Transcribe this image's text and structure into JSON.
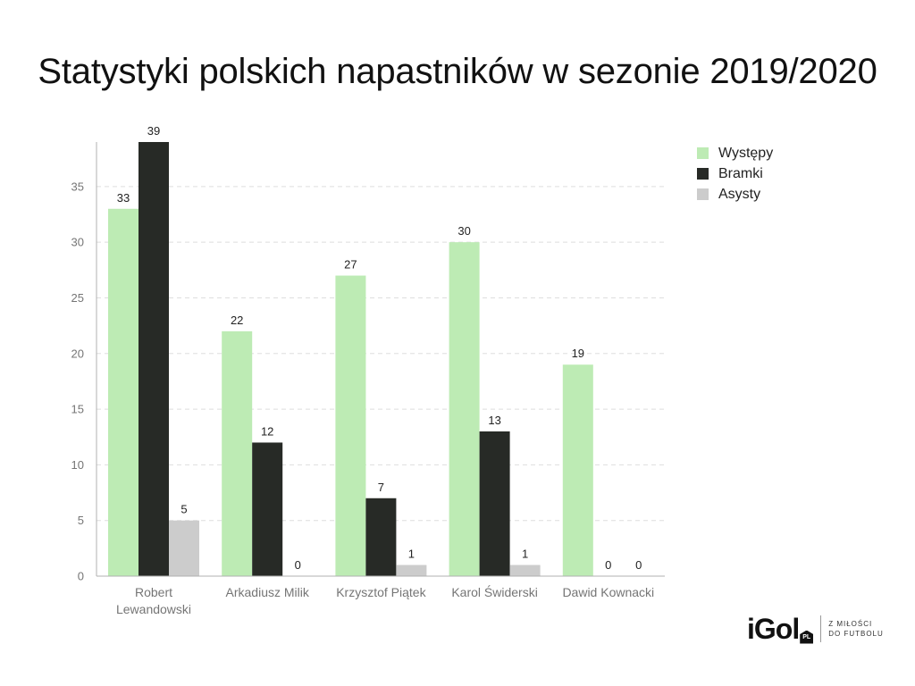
{
  "chart_data": {
    "type": "bar",
    "title": "Statystyki polskich napastników w sezonie 2019/2020",
    "categories": [
      [
        "Robert",
        "Lewandowski"
      ],
      [
        "Arkadiusz Milik"
      ],
      [
        "Krzysztof Piątek"
      ],
      [
        "Karol Świderski"
      ],
      [
        "Dawid Kownacki"
      ]
    ],
    "series": [
      {
        "name": "Występy",
        "color": "#bdebb4",
        "values": [
          33,
          22,
          27,
          30,
          19
        ],
        "labels": [
          "33",
          "22",
          "27",
          "30",
          "19"
        ]
      },
      {
        "name": "Bramki",
        "color": "#272a26",
        "values": [
          39,
          12,
          7,
          13,
          0
        ],
        "labels": [
          "39",
          "12",
          "7",
          "13",
          "0"
        ]
      },
      {
        "name": "Asysty",
        "color": "#cccccc",
        "values": [
          5,
          0,
          1,
          1,
          0
        ],
        "labels": [
          "5",
          "0",
          "1",
          "1",
          "0"
        ]
      }
    ],
    "ylim": [
      0,
      39
    ],
    "yticks": [
      0,
      5,
      10,
      15,
      20,
      25,
      30,
      35
    ],
    "ytick_labels": [
      "0",
      "5",
      "10",
      "15",
      "20",
      "25",
      "30",
      "35"
    ],
    "grid": true,
    "legend_position": "top-right",
    "xlabel": "",
    "ylabel": ""
  },
  "logo": {
    "text": "iGol",
    "badge": "PL",
    "tagline_line1": "Z MIŁOŚCI",
    "tagline_line2": "DO FUTBOLU"
  }
}
